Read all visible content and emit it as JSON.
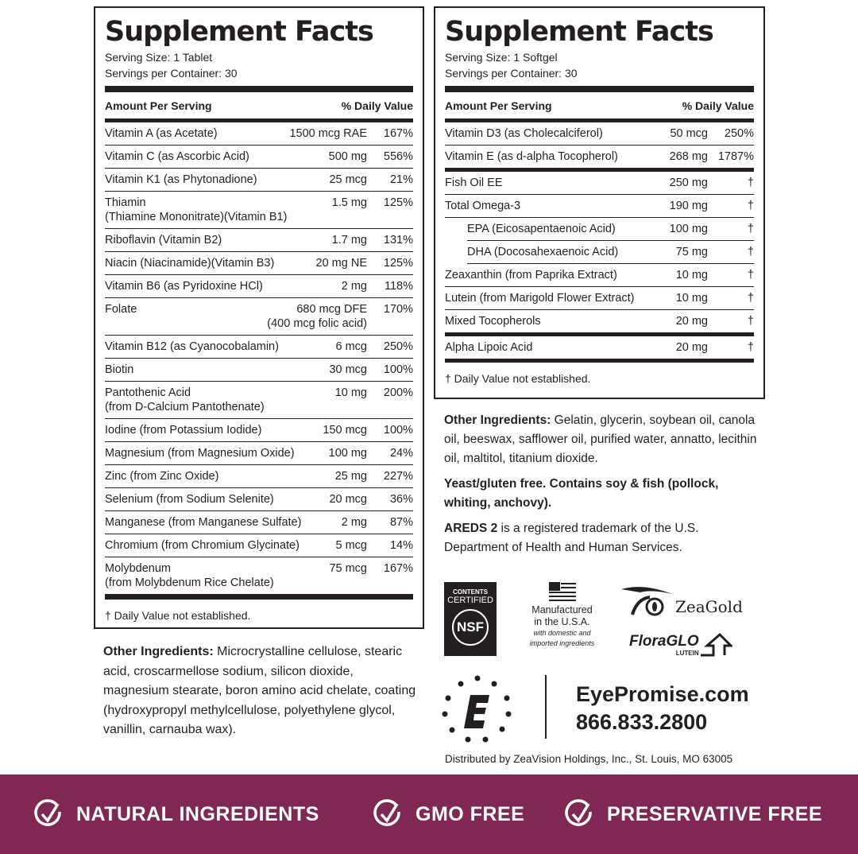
{
  "left": {
    "title": "Supplement Facts",
    "serving_size": "Serving Size: 1 Tablet",
    "servings_per_container": "Servings per Container: 30",
    "col_amount": "Amount Per Serving",
    "col_dv": "% Daily Value",
    "rows": [
      {
        "name": "Vitamin A (as Acetate)",
        "amount": "1500 mcg RAE",
        "dv": "167%"
      },
      {
        "name": "Vitamin C (as Ascorbic Acid)",
        "amount": "500 mg",
        "dv": "556%"
      },
      {
        "name": "Vitamin K1 (as Phytonadione)",
        "amount": "25 mcg",
        "dv": "21%"
      },
      {
        "name": "Thiamin",
        "sub": "(Thiamine Mononitrate)(Vitamin B1)",
        "amount": "1.5 mg",
        "dv": "125%"
      },
      {
        "name": "Riboflavin (Vitamin B2)",
        "amount": "1.7 mg",
        "dv": "131%"
      },
      {
        "name": "Niacin (Niacinamide)(Vitamin B3)",
        "amount": "20 mg NE",
        "dv": "125%"
      },
      {
        "name": "Vitamin B6 (as Pyridoxine HCl)",
        "amount": "2 mg",
        "dv": "118%"
      },
      {
        "name": "Folate",
        "amount": "680 mcg DFE",
        "amount2": "(400 mcg folic acid)",
        "dv": "170%"
      },
      {
        "name": "Vitamin B12 (as Cyanocobalamin)",
        "amount": "6 mcg",
        "dv": "250%"
      },
      {
        "name": "Biotin",
        "amount": "30 mcg",
        "dv": "100%"
      },
      {
        "name": "Pantothenic Acid",
        "sub": "(from D-Calcium Pantothenate)",
        "amount": "10 mg",
        "dv": "200%"
      },
      {
        "name": "Iodine (from Potassium Iodide)",
        "amount": "150 mcg",
        "dv": "100%"
      },
      {
        "name": "Magnesium (from Magnesium Oxide)",
        "amount": "100 mg",
        "dv": "24%"
      },
      {
        "name": "Zinc (from Zinc Oxide)",
        "amount": "25 mg",
        "dv": "227%"
      },
      {
        "name": "Selenium (from Sodium Selenite)",
        "amount": "20 mcg",
        "dv": "36%"
      },
      {
        "name": "Manganese (from Manganese Sulfate)",
        "amount": "2 mg",
        "dv": "87%"
      },
      {
        "name": "Chromium (from Chromium Glycinate)",
        "amount": "5 mcg",
        "dv": "14%"
      },
      {
        "name": "Molybdenum",
        "sub": "(from Molybdenum Rice Chelate)",
        "amount": "75 mcg",
        "dv": "167%"
      }
    ],
    "footnote": "† Daily Value not established.",
    "other_label": "Other Ingredients:",
    "other_text": " Microcrystalline cellulose, stearic acid, croscarmellose sodium, silicon dioxide, magnesium stearate, boron amino acid chelate, coating (hydroxypropyl methylcellulose, polyethylene glycol, vanillin, carnauba wax)."
  },
  "right": {
    "title": "Supplement Facts",
    "serving_size": "Serving Size: 1 Softgel",
    "servings_per_container": "Servings per Container: 30",
    "col_amount": "Amount Per Serving",
    "col_dv": "% Daily Value",
    "groups": [
      [
        {
          "name": "Vitamin D3 (as Cholecalciferol)",
          "amount": "50 mcg",
          "dv": "250%"
        },
        {
          "name": "Vitamin E (as d-alpha Tocopherol)",
          "amount": "268 mg",
          "dv": "1787%"
        }
      ],
      [
        {
          "name": "Fish Oil EE",
          "amount": "250 mg",
          "dv": "†"
        },
        {
          "name": "Total Omega-3",
          "amount": "190 mg",
          "dv": "†"
        },
        {
          "name": "EPA (Eicosapentaenoic Acid)",
          "amount": "100 mg",
          "dv": "†",
          "indent": true
        },
        {
          "name": "DHA (Docosahexaenoic Acid)",
          "amount": "75 mg",
          "dv": "†",
          "indent": true
        },
        {
          "name": "Zeaxanthin (from Paprika Extract)",
          "amount": "10 mg",
          "dv": "†"
        },
        {
          "name": "Lutein (from Marigold Flower Extract)",
          "amount": "10 mg",
          "dv": "†"
        },
        {
          "name": "Mixed Tocopherols",
          "amount": "20 mg",
          "dv": "†"
        }
      ],
      [
        {
          "name": "Alpha Lipoic Acid",
          "amount": "20 mg",
          "dv": "†"
        }
      ]
    ],
    "footnote": "† Daily Value not established.",
    "other_label": "Other Ingredients:",
    "other_text": " Gelatin, glycerin, soybean oil, canola oil, beeswax, safflower oil, purified water, annatto, lecithin oil, maltitol, titanium dioxide.",
    "allergen": "Yeast/gluten free. Contains soy & fish (pollock, whiting, anchovy).",
    "trademark_bold": "AREDS 2",
    "trademark_text": " is a registered trademark of the U.S. Department of Health and Human Services."
  },
  "logos": {
    "nsf_top": "CONTENTS",
    "nsf_mid": "CERTIFIED",
    "nsf_mark": "NSF",
    "usa_line1": "Manufactured",
    "usa_line2": "in the U.S.A.",
    "usa_line3": "with domestic and",
    "usa_line4": "imported ingredients",
    "zeagold": "ZeaGold",
    "floraglo": "FloraGLO",
    "floraglo_sub": "LUTEIN"
  },
  "contact": {
    "website": "EyePromise.com",
    "phone": "866.833.2800",
    "distributed": "Distributed by ZeaVision Holdings, Inc., St. Louis, MO 63005"
  },
  "banner": {
    "color": "#7f2853",
    "items": [
      "NATURAL INGREDIENTS",
      "GMO FREE",
      "PRESERVATIVE FREE"
    ],
    "icon": "check-circle-icon"
  }
}
